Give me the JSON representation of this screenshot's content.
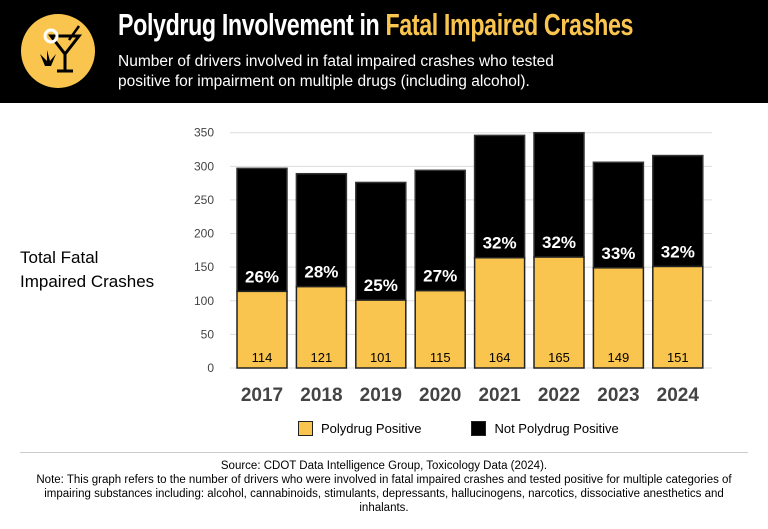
{
  "header": {
    "title_part1": "Polydrug Involvement in ",
    "title_part2": "Fatal Impaired Crashes",
    "subtitle_line1": "Number of drivers involved in fatal impaired crashes who tested",
    "subtitle_line2": "positive for impairment on multiple drugs (including alcohol).",
    "logo_icon": "martini-cannabis-icon"
  },
  "chart_data": {
    "type": "bar",
    "stacked": true,
    "ylabel_line1": "Total Fatal",
    "ylabel_line2": "Impaired Crashes",
    "categories": [
      "2017",
      "2018",
      "2019",
      "2020",
      "2021",
      "2022",
      "2023",
      "2024"
    ],
    "series": [
      {
        "name": "Polydrug Positive",
        "color": "#f9c54f",
        "values": [
          114,
          121,
          101,
          115,
          164,
          165,
          149,
          151
        ]
      },
      {
        "name": "Not Polydrug Positive",
        "color": "#000000",
        "values": [
          183,
          168,
          175,
          179,
          182,
          185,
          157,
          165
        ]
      }
    ],
    "percent_labels": [
      "26%",
      "28%",
      "25%",
      "27%",
      "32%",
      "32%",
      "33%",
      "32%"
    ],
    "ylim": [
      0,
      350
    ],
    "yticks": [
      0,
      50,
      100,
      150,
      200,
      250,
      300,
      350
    ],
    "grid": true,
    "legend": "bottom"
  },
  "footer": {
    "source": "Source: CDOT Data Intelligence Group, Toxicology Data (2024).",
    "note": "Note: This graph refers to the number of drivers who were involved in fatal impaired crashes and tested positive for multiple categories of impairing substances including: alcohol, cannabinoids, stimulants, depressants, hallucinogens, narcotics, dissociative anesthetics and inhalants."
  }
}
